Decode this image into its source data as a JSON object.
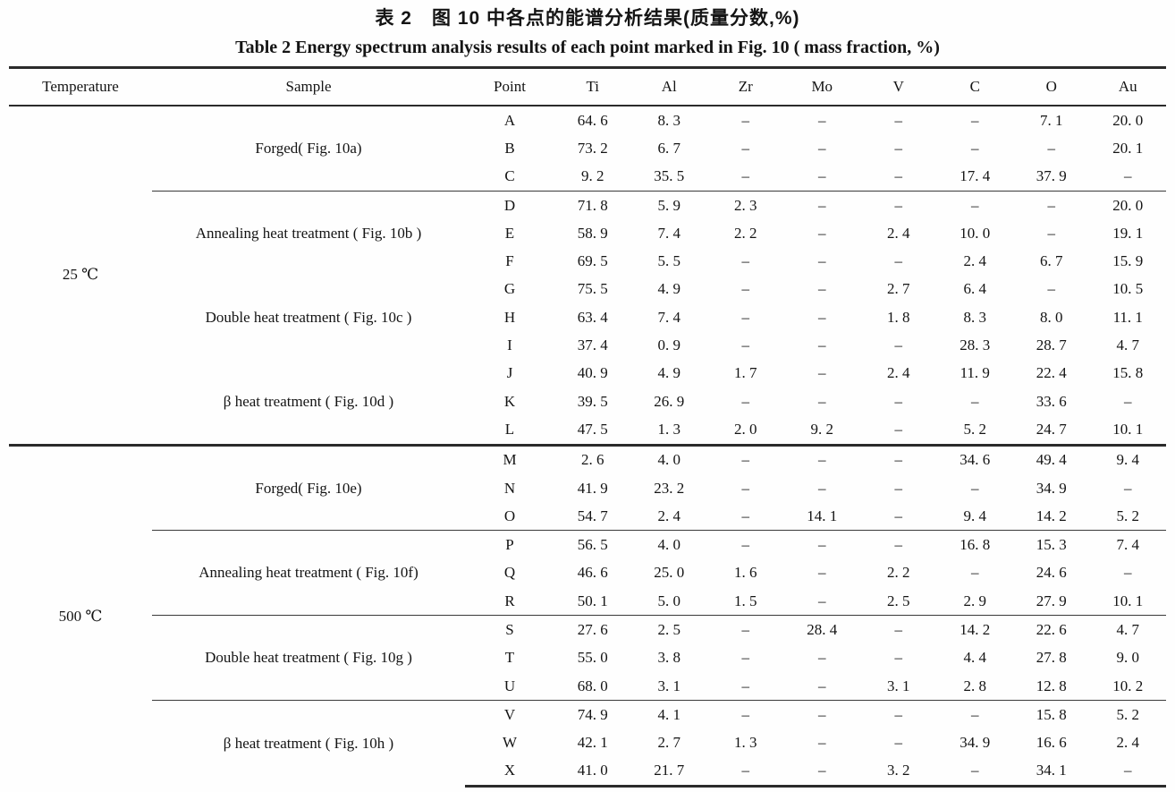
{
  "title_cn": "表 2　图 10 中各点的能谱分析结果(质量分数,%)",
  "title_en": "Table 2   Energy spectrum analysis results of each point marked in Fig. 10 ( mass fraction, %)",
  "table": {
    "columns": [
      "Temperature",
      "Sample",
      "Point",
      "Ti",
      "Al",
      "Zr",
      "Mo",
      "V",
      "C",
      "O",
      "Au"
    ],
    "dash": "–",
    "temperature_groups": [
      {
        "temperature": "25 ℃",
        "samples": [
          {
            "label": "Forged( Fig. 10a)",
            "rule_above": false,
            "rows": [
              {
                "point": "A",
                "values": [
                  "64. 6",
                  "8. 3",
                  "–",
                  "–",
                  "–",
                  "–",
                  "7. 1",
                  "20. 0"
                ]
              },
              {
                "point": "B",
                "values": [
                  "73. 2",
                  "6. 7",
                  "–",
                  "–",
                  "–",
                  "–",
                  "–",
                  "20. 1"
                ]
              },
              {
                "point": "C",
                "values": [
                  "9. 2",
                  "35. 5",
                  "–",
                  "–",
                  "–",
                  "17. 4",
                  "37. 9",
                  "–"
                ]
              }
            ]
          },
          {
            "label": "Annealing heat treatment ( Fig. 10b )",
            "rule_above": true,
            "rows": [
              {
                "point": "D",
                "values": [
                  "71. 8",
                  "5. 9",
                  "2. 3",
                  "–",
                  "–",
                  "–",
                  "–",
                  "20. 0"
                ]
              },
              {
                "point": "E",
                "values": [
                  "58. 9",
                  "7. 4",
                  "2. 2",
                  "–",
                  "2. 4",
                  "10. 0",
                  "–",
                  "19. 1"
                ]
              },
              {
                "point": "F",
                "values": [
                  "69. 5",
                  "5. 5",
                  "–",
                  "–",
                  "–",
                  "2. 4",
                  "6. 7",
                  "15. 9"
                ]
              }
            ]
          },
          {
            "label": "Double heat treatment ( Fig. 10c )",
            "rule_above": false,
            "rows": [
              {
                "point": "G",
                "values": [
                  "75. 5",
                  "4. 9",
                  "–",
                  "–",
                  "2. 7",
                  "6. 4",
                  "–",
                  "10. 5"
                ]
              },
              {
                "point": "H",
                "values": [
                  "63. 4",
                  "7. 4",
                  "–",
                  "–",
                  "1. 8",
                  "8. 3",
                  "8. 0",
                  "11. 1"
                ]
              },
              {
                "point": "I",
                "values": [
                  "37. 4",
                  "0. 9",
                  "–",
                  "–",
                  "–",
                  "28. 3",
                  "28. 7",
                  "4. 7"
                ]
              }
            ]
          },
          {
            "label": "β heat treatment ( Fig. 10d )",
            "rule_above": false,
            "rows": [
              {
                "point": "J",
                "values": [
                  "40. 9",
                  "4. 9",
                  "1. 7",
                  "–",
                  "2. 4",
                  "11. 9",
                  "22. 4",
                  "15. 8"
                ]
              },
              {
                "point": "K",
                "values": [
                  "39. 5",
                  "26. 9",
                  "–",
                  "–",
                  "–",
                  "–",
                  "33. 6",
                  "–"
                ]
              },
              {
                "point": "L",
                "values": [
                  "47. 5",
                  "1. 3",
                  "2. 0",
                  "9. 2",
                  "–",
                  "5. 2",
                  "24. 7",
                  "10. 1"
                ]
              }
            ]
          }
        ]
      },
      {
        "temperature": "500 ℃",
        "samples": [
          {
            "label": "Forged( Fig. 10e)",
            "rule_above": false,
            "rows": [
              {
                "point": "M",
                "values": [
                  "2. 6",
                  "4. 0",
                  "–",
                  "–",
                  "–",
                  "34. 6",
                  "49. 4",
                  "9. 4"
                ]
              },
              {
                "point": "N",
                "values": [
                  "41. 9",
                  "23. 2",
                  "–",
                  "–",
                  "–",
                  "–",
                  "34. 9",
                  "–"
                ]
              },
              {
                "point": "O",
                "values": [
                  "54. 7",
                  "2. 4",
                  "–",
                  "14. 1",
                  "–",
                  "9. 4",
                  "14. 2",
                  "5. 2"
                ]
              }
            ]
          },
          {
            "label": "Annealing heat treatment ( Fig. 10f)",
            "rule_above": true,
            "rows": [
              {
                "point": "P",
                "values": [
                  "56. 5",
                  "4. 0",
                  "–",
                  "–",
                  "–",
                  "16. 8",
                  "15. 3",
                  "7. 4"
                ]
              },
              {
                "point": "Q",
                "values": [
                  "46. 6",
                  "25. 0",
                  "1. 6",
                  "–",
                  "2. 2",
                  "–",
                  "24. 6",
                  "–"
                ]
              },
              {
                "point": "R",
                "values": [
                  "50. 1",
                  "5. 0",
                  "1. 5",
                  "–",
                  "2. 5",
                  "2. 9",
                  "27. 9",
                  "10. 1"
                ]
              }
            ]
          },
          {
            "label": "Double heat treatment ( Fig. 10g )",
            "rule_above": true,
            "rows": [
              {
                "point": "S",
                "values": [
                  "27. 6",
                  "2. 5",
                  "–",
                  "28. 4",
                  "–",
                  "14. 2",
                  "22. 6",
                  "4. 7"
                ]
              },
              {
                "point": "T",
                "values": [
                  "55. 0",
                  "3. 8",
                  "–",
                  "–",
                  "–",
                  "4. 4",
                  "27. 8",
                  "9. 0"
                ]
              },
              {
                "point": "U",
                "values": [
                  "68. 0",
                  "3. 1",
                  "–",
                  "–",
                  "3. 1",
                  "2. 8",
                  "12. 8",
                  "10. 2"
                ]
              }
            ]
          },
          {
            "label": "β heat treatment ( Fig. 10h )",
            "rule_above": true,
            "rows": [
              {
                "point": "V",
                "values": [
                  "74. 9",
                  "4. 1",
                  "–",
                  "–",
                  "–",
                  "–",
                  "15. 8",
                  "5. 2"
                ]
              },
              {
                "point": "W",
                "values": [
                  "42. 1",
                  "2. 7",
                  "1. 3",
                  "–",
                  "–",
                  "34. 9",
                  "16. 6",
                  "2. 4"
                ]
              },
              {
                "point": "X",
                "values": [
                  "41. 0",
                  "21. 7",
                  "–",
                  "–",
                  "3. 2",
                  "–",
                  "34. 1",
                  "–"
                ]
              }
            ]
          }
        ]
      }
    ]
  }
}
